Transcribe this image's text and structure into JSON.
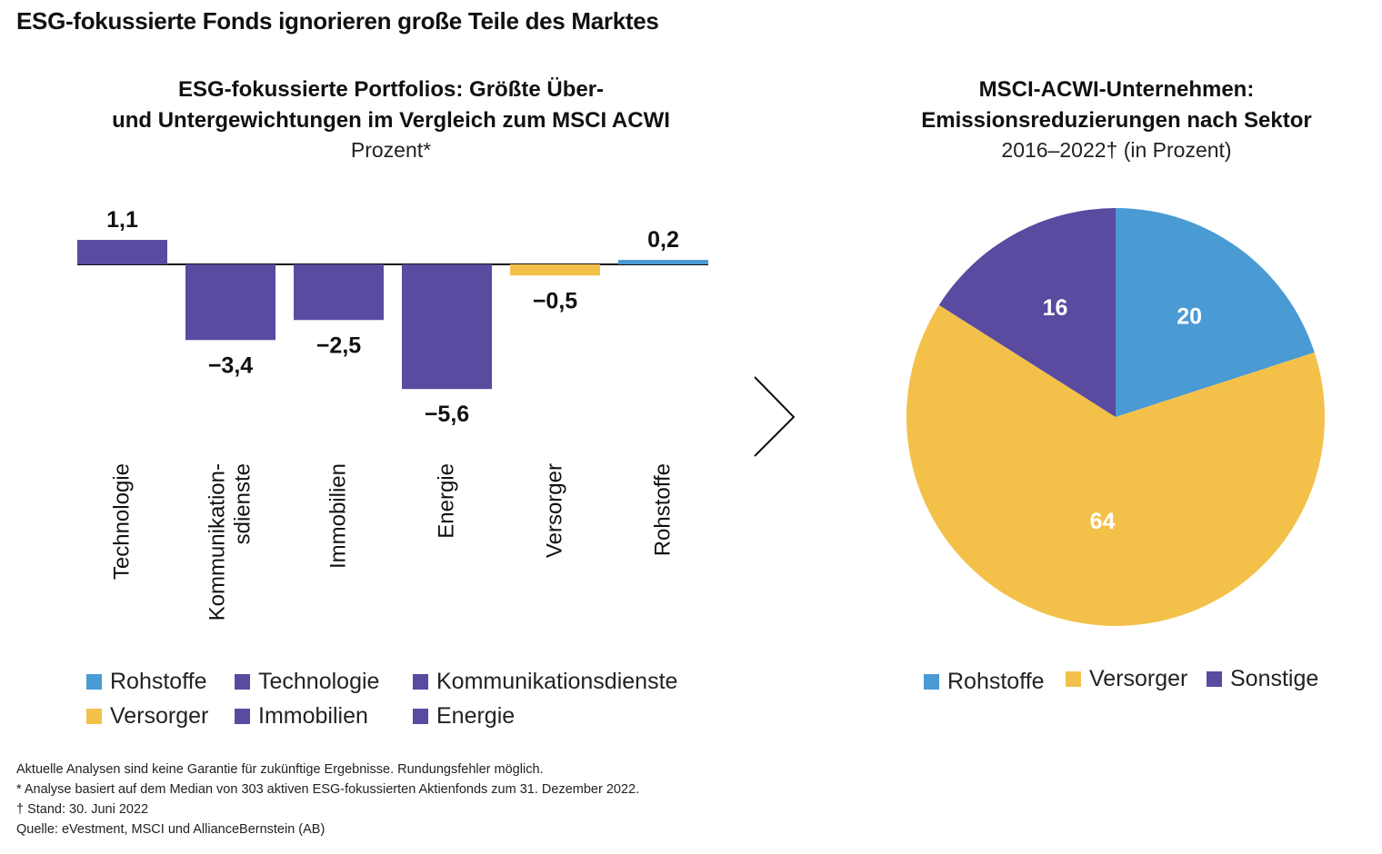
{
  "main_title": "ESG-fokussierte Fonds ignorieren große Teile des Marktes",
  "colors": {
    "rohstoffe": "#4a9ad4",
    "purple": "#5a4aa0",
    "versorger": "#f3c14a",
    "sonstige": "#5a4aa0",
    "axis": "#111111"
  },
  "chart_data": [
    {
      "type": "bar",
      "title_line1": "ESG-fokussierte Portfolios: Größte Über-",
      "title_line2": "und Untergewichtungen im Vergleich zum MSCI ACWI",
      "subtitle": "Prozent*",
      "categories": [
        "Technologie",
        "Kommunikation-\nsdienste",
        "Immobilien",
        "Energie",
        "Versorger",
        "Rohstoffe"
      ],
      "values": [
        1.1,
        -3.4,
        -2.5,
        -5.6,
        -0.5,
        0.2
      ],
      "value_labels": [
        "1,1",
        "−3,4",
        "−2,5",
        "−5,6",
        "−0,5",
        "0,2"
      ],
      "bar_colors": [
        "#5a4aa0",
        "#5a4aa0",
        "#5a4aa0",
        "#5a4aa0",
        "#f3c14a",
        "#4a9ad4"
      ],
      "legend": [
        {
          "label": "Rohstoffe",
          "color": "#4a9ad4"
        },
        {
          "label": "Technologie",
          "color": "#5a4aa0"
        },
        {
          "label": "Kommunikationsdienste",
          "color": "#5a4aa0"
        },
        {
          "label": "Versorger",
          "color": "#f3c14a"
        },
        {
          "label": "Immobilien",
          "color": "#5a4aa0"
        },
        {
          "label": "Energie",
          "color": "#5a4aa0"
        }
      ]
    },
    {
      "type": "pie",
      "title_line1": "MSCI-ACWI-Unternehmen:",
      "title_line2": "Emissionsreduzierungen nach Sektor",
      "subtitle": "2016–2022† (in Prozent)",
      "slices": [
        {
          "label": "Rohstoffe",
          "value": 20,
          "color": "#4a9ad4"
        },
        {
          "label": "Versorger",
          "value": 64,
          "color": "#f3c14a"
        },
        {
          "label": "Sonstige",
          "value": 16,
          "color": "#5a4aa0"
        }
      ],
      "legend": [
        {
          "label": "Rohstoffe",
          "color": "#4a9ad4"
        },
        {
          "label": "Versorger",
          "color": "#f3c14a"
        },
        {
          "label": "Sonstige",
          "color": "#5a4aa0"
        }
      ]
    }
  ],
  "footnotes": [
    "Aktuelle Analysen sind keine Garantie für zukünftige Ergebnisse. Rundungsfehler möglich.",
    "* Analyse basiert auf dem Median von 303 aktiven ESG-fokussierten Aktienfonds zum 31. Dezember 2022.",
    "† Stand: 30. Juni 2022",
    "Quelle: eVestment, MSCI und AllianceBernstein (AB)"
  ]
}
